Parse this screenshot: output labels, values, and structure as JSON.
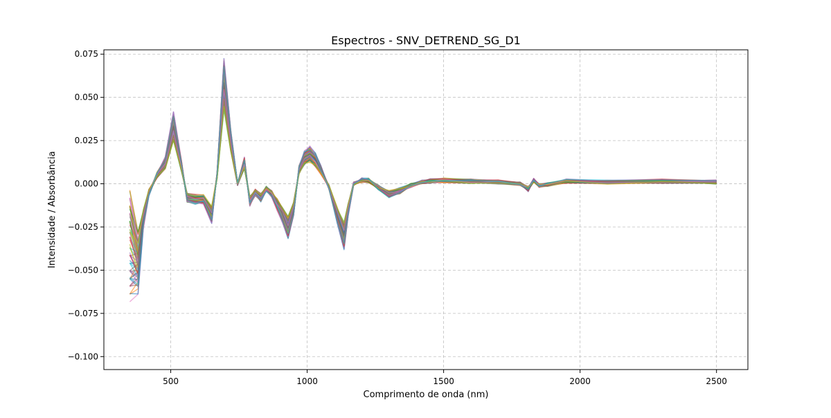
{
  "chart_data": {
    "type": "line",
    "title": "Espectros - SNV_DETREND_SG_D1",
    "xlabel": "Comprimento de onda (nm)",
    "ylabel": "Intensidade / Absorbância",
    "xlim": [
      255,
      2615
    ],
    "ylim": [
      -0.1075,
      0.0775
    ],
    "xticks": [
      500,
      1000,
      1500,
      2000,
      2500
    ],
    "yticks": [
      -0.1,
      -0.075,
      -0.05,
      -0.025,
      0.0,
      0.025,
      0.05,
      0.075
    ],
    "ytick_labels": [
      "−0.100",
      "−0.075",
      "−0.050",
      "−0.025",
      "0.000",
      "0.025",
      "0.050",
      "0.075"
    ],
    "grid": true,
    "grid_style": "dashed",
    "legend": "none",
    "series_count_estimate": 60,
    "series_colors": [
      "#1f77b4",
      "#ff7f0e",
      "#2ca02c",
      "#d62728",
      "#9467bd",
      "#8c564b",
      "#e377c2",
      "#7f7f7f",
      "#bcbd22",
      "#17becf"
    ],
    "representative_spectrum": {
      "x": [
        350,
        380,
        400,
        420,
        450,
        480,
        510,
        540,
        560,
        590,
        620,
        650,
        670,
        695,
        720,
        745,
        770,
        790,
        810,
        830,
        850,
        870,
        890,
        910,
        930,
        950,
        970,
        990,
        1010,
        1030,
        1050,
        1080,
        1110,
        1135,
        1150,
        1170,
        1200,
        1225,
        1260,
        1300,
        1340,
        1380,
        1420,
        1450,
        1500,
        1600,
        1700,
        1780,
        1810,
        1830,
        1850,
        1880,
        1950,
        2100,
        2300,
        2500
      ],
      "y": [
        -0.035,
        -0.045,
        -0.02,
        -0.005,
        0.005,
        0.012,
        0.033,
        0.01,
        -0.008,
        -0.009,
        -0.009,
        -0.018,
        0.005,
        0.058,
        0.025,
        0.0,
        0.012,
        -0.01,
        -0.005,
        -0.008,
        -0.003,
        -0.006,
        -0.012,
        -0.018,
        -0.025,
        -0.015,
        0.008,
        0.015,
        0.017,
        0.014,
        0.008,
        -0.002,
        -0.018,
        -0.03,
        -0.015,
        0.0,
        0.002,
        0.002,
        -0.002,
        -0.006,
        -0.004,
        -0.001,
        0.001,
        0.0015,
        0.002,
        0.0015,
        0.001,
        0.0,
        -0.003,
        0.002,
        -0.001,
        -0.0005,
        0.0015,
        0.001,
        0.0015,
        0.001
      ]
    }
  }
}
